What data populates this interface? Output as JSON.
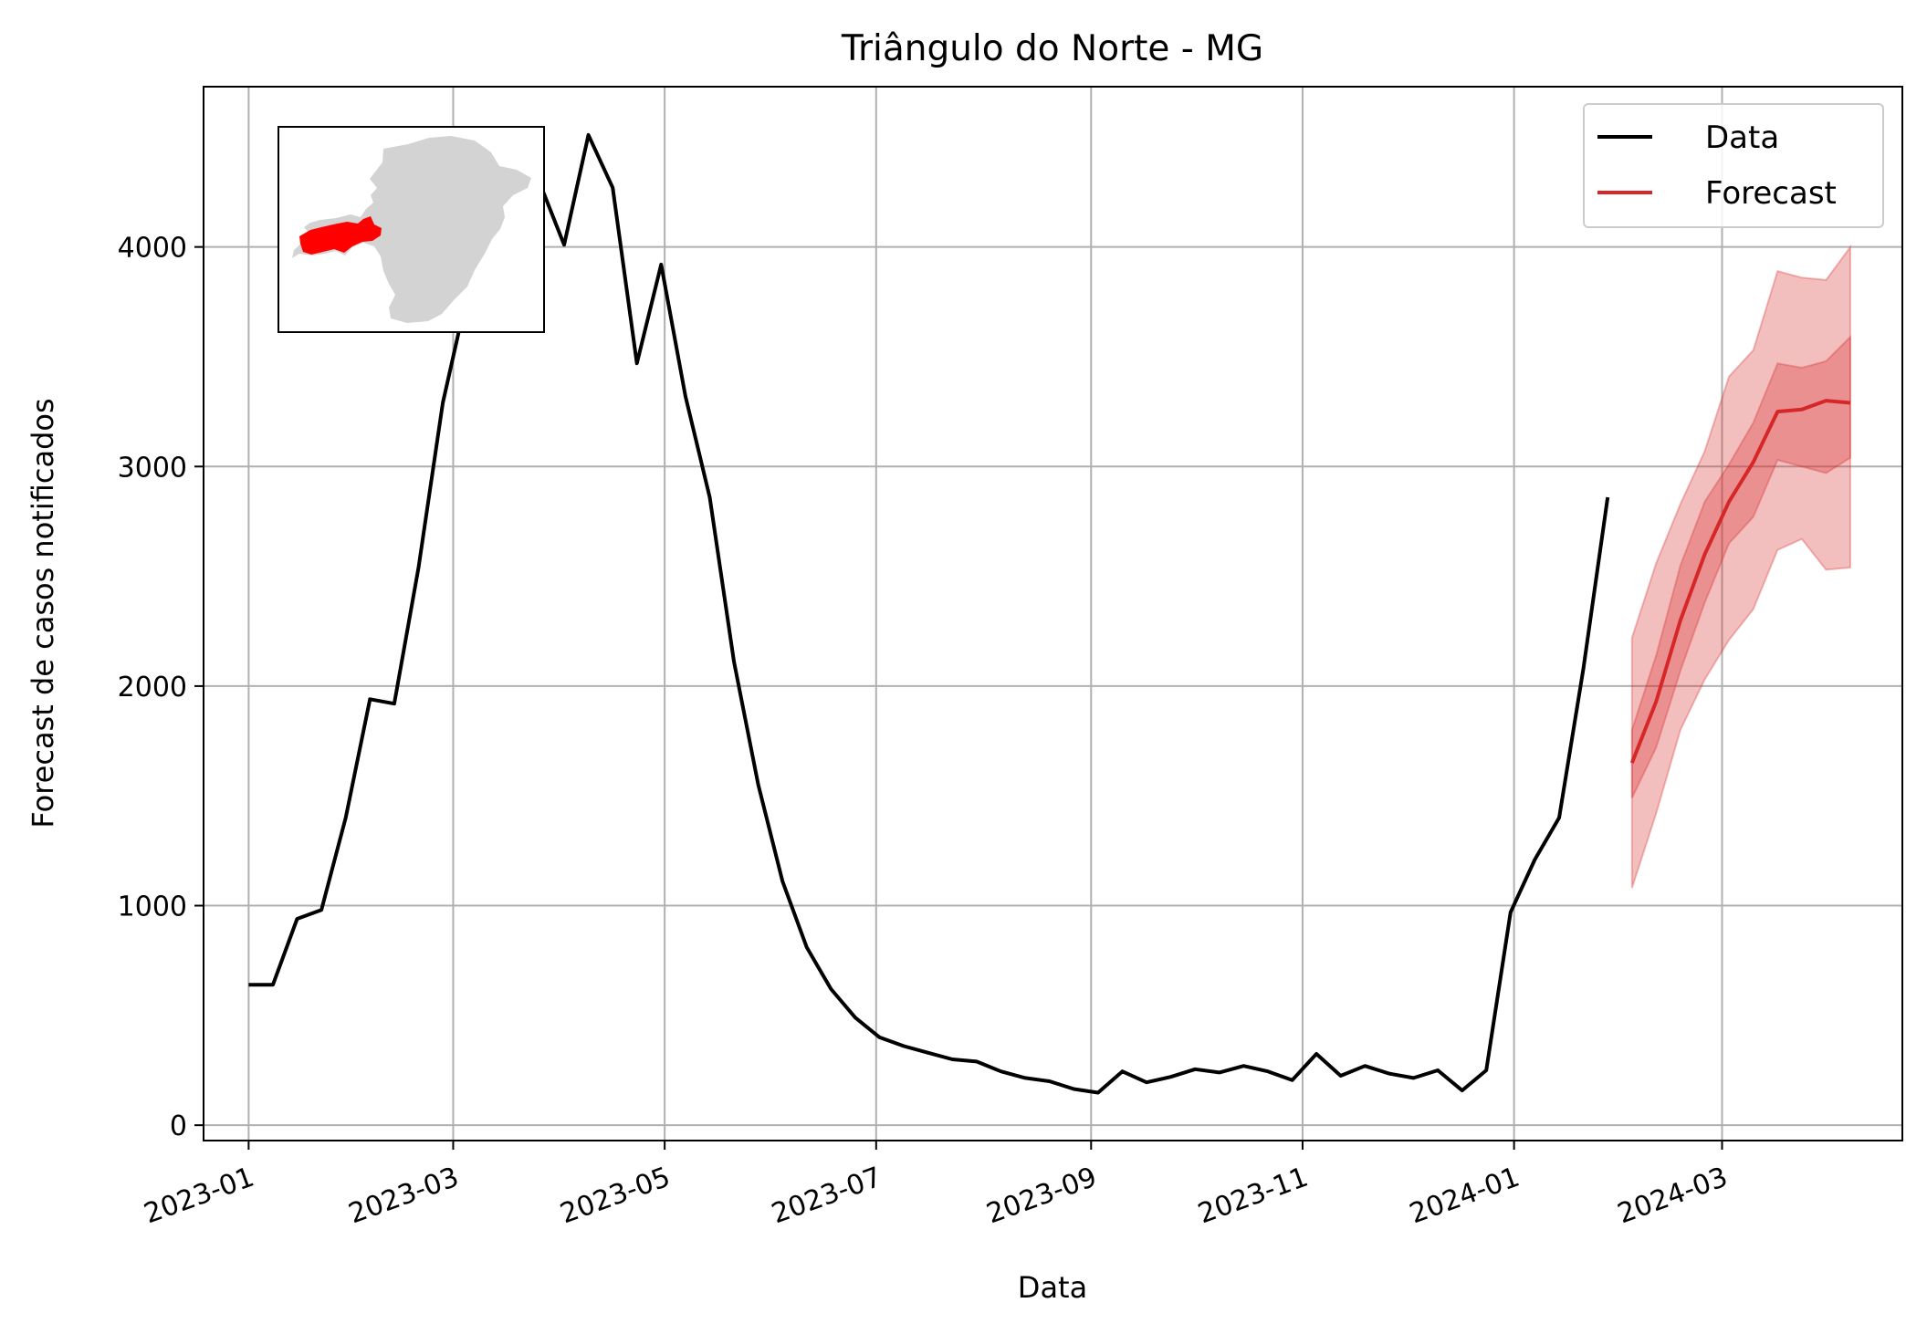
{
  "chart_data": {
    "type": "line",
    "title": "Triângulo do Norte - MG",
    "xlabel": "Data",
    "ylabel": "Forecast de casos notificados",
    "xlim": [
      "2022-12-19",
      "2024-04-22"
    ],
    "ylim": [
      -70,
      4730
    ],
    "grid": true,
    "legend_position": "top-right",
    "x_ticks": [
      "2023-01",
      "2023-03",
      "2023-05",
      "2023-07",
      "2023-09",
      "2023-11",
      "2024-01",
      "2024-03"
    ],
    "x_tick_dates": [
      "2023-01-01",
      "2023-03-01",
      "2023-05-01",
      "2023-07-01",
      "2023-09-01",
      "2023-11-01",
      "2024-01-01",
      "2024-03-01"
    ],
    "y_ticks": [
      0,
      1000,
      2000,
      3000,
      4000
    ],
    "legend": [
      {
        "name": "Data",
        "color": "#000000"
      },
      {
        "name": "Forecast",
        "color": "#d62728"
      }
    ],
    "series": [
      {
        "name": "Data",
        "color": "#000000",
        "x": [
          "2023-01-01",
          "2023-01-08",
          "2023-01-15",
          "2023-01-22",
          "2023-01-29",
          "2023-02-05",
          "2023-02-12",
          "2023-02-19",
          "2023-02-26",
          "2023-03-05",
          "2023-03-12",
          "2023-03-19",
          "2023-03-26",
          "2023-04-02",
          "2023-04-09",
          "2023-04-16",
          "2023-04-23",
          "2023-04-30",
          "2023-05-07",
          "2023-05-14",
          "2023-05-21",
          "2023-05-28",
          "2023-06-04",
          "2023-06-11",
          "2023-06-18",
          "2023-06-25",
          "2023-07-02",
          "2023-07-09",
          "2023-07-16",
          "2023-07-23",
          "2023-07-30",
          "2023-08-06",
          "2023-08-13",
          "2023-08-20",
          "2023-08-27",
          "2023-09-03",
          "2023-09-10",
          "2023-09-17",
          "2023-09-24",
          "2023-10-01",
          "2023-10-08",
          "2023-10-15",
          "2023-10-22",
          "2023-10-29",
          "2023-11-05",
          "2023-11-12",
          "2023-11-19",
          "2023-11-26",
          "2023-12-03",
          "2023-12-10",
          "2023-12-17",
          "2023-12-24",
          "2023-12-31",
          "2024-01-07",
          "2024-01-14",
          "2024-01-21",
          "2024-01-28"
        ],
        "y": [
          640,
          640,
          940,
          980,
          1400,
          1940,
          1920,
          2540,
          3290,
          3780,
          4280,
          4330,
          4290,
          4010,
          4510,
          4270,
          3470,
          3920,
          3320,
          2860,
          2110,
          1550,
          1110,
          810,
          620,
          490,
          400,
          360,
          330,
          300,
          290,
          245,
          215,
          200,
          165,
          148,
          245,
          195,
          220,
          255,
          240,
          270,
          245,
          205,
          325,
          225,
          270,
          235,
          215,
          250,
          158,
          250,
          970,
          1210,
          1400,
          2080,
          2860
        ]
      },
      {
        "name": "Forecast",
        "color": "#d62728",
        "x": [
          "2024-02-04",
          "2024-02-11",
          "2024-02-18",
          "2024-02-25",
          "2024-03-03",
          "2024-03-10",
          "2024-03-17",
          "2024-03-24",
          "2024-03-31",
          "2024-04-07"
        ],
        "y": [
          1650,
          1930,
          2300,
          2600,
          2840,
          3020,
          3250,
          3260,
          3300,
          3290
        ],
        "inner_lower": [
          1490,
          1720,
          2070,
          2380,
          2650,
          2770,
          3030,
          3000,
          2970,
          3040
        ],
        "inner_upper": [
          1800,
          2140,
          2550,
          2840,
          3010,
          3200,
          3470,
          3450,
          3480,
          3590
        ],
        "outer_lower": [
          1080,
          1420,
          1800,
          2030,
          2210,
          2350,
          2620,
          2670,
          2530,
          2540
        ],
        "outer_upper": [
          2220,
          2560,
          2830,
          3070,
          3410,
          3530,
          3890,
          3860,
          3850,
          4000
        ]
      }
    ]
  }
}
